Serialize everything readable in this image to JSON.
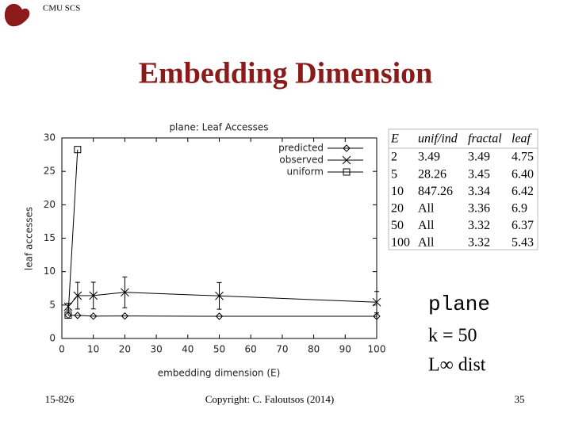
{
  "header": {
    "org": "CMU SCS",
    "title": "Embedding Dimension"
  },
  "chart_data": {
    "type": "line",
    "title": "plane: Leaf Accesses",
    "x_label": "embedding dimension (E)",
    "y_label": "leaf accesses",
    "xlim": [
      0,
      100
    ],
    "ylim": [
      0,
      30
    ],
    "xticks": [
      0,
      10,
      20,
      30,
      40,
      50,
      60,
      70,
      80,
      90,
      100
    ],
    "yticks": [
      0,
      5,
      10,
      15,
      20,
      25,
      30
    ],
    "legend": "upper right",
    "series": [
      {
        "name": "predicted",
        "color": "#000000",
        "marker": "diamond",
        "x": [
          2,
          5,
          10,
          20,
          50,
          100
        ],
        "values": [
          3.49,
          3.45,
          3.34,
          3.36,
          3.32,
          3.32
        ]
      },
      {
        "name": "observed",
        "color": "#000000",
        "marker": "x",
        "x": [
          2,
          5,
          10,
          20,
          50,
          100
        ],
        "values": [
          4.75,
          6.4,
          6.42,
          6.9,
          6.37,
          5.43
        ],
        "errors": [
          0.5,
          2,
          2,
          2.3,
          2,
          1.6
        ]
      },
      {
        "name": "uniform",
        "color": "#000000",
        "marker": "square",
        "x": [
          2,
          5
        ],
        "values": [
          3.49,
          28.26
        ]
      }
    ]
  },
  "table": {
    "columns": [
      "E",
      "unif/ind",
      "fractal",
      "leaf"
    ],
    "rows": [
      [
        "2",
        "3.49",
        "3.49",
        "4.75"
      ],
      [
        "5",
        "28.26",
        "3.45",
        "6.40"
      ],
      [
        "10",
        "847.26",
        "3.34",
        "6.42"
      ],
      [
        "20",
        "All",
        "3.36",
        "6.9"
      ],
      [
        "50",
        "All",
        "3.32",
        "6.37"
      ],
      [
        "100",
        "All",
        "3.32",
        "5.43"
      ]
    ]
  },
  "notes": [
    "plane",
    "k = 50",
    "L∞ dist"
  ],
  "footer": {
    "course": "15-826",
    "copyright": "Copyright: C. Faloutsos (2014)",
    "page": "35"
  }
}
